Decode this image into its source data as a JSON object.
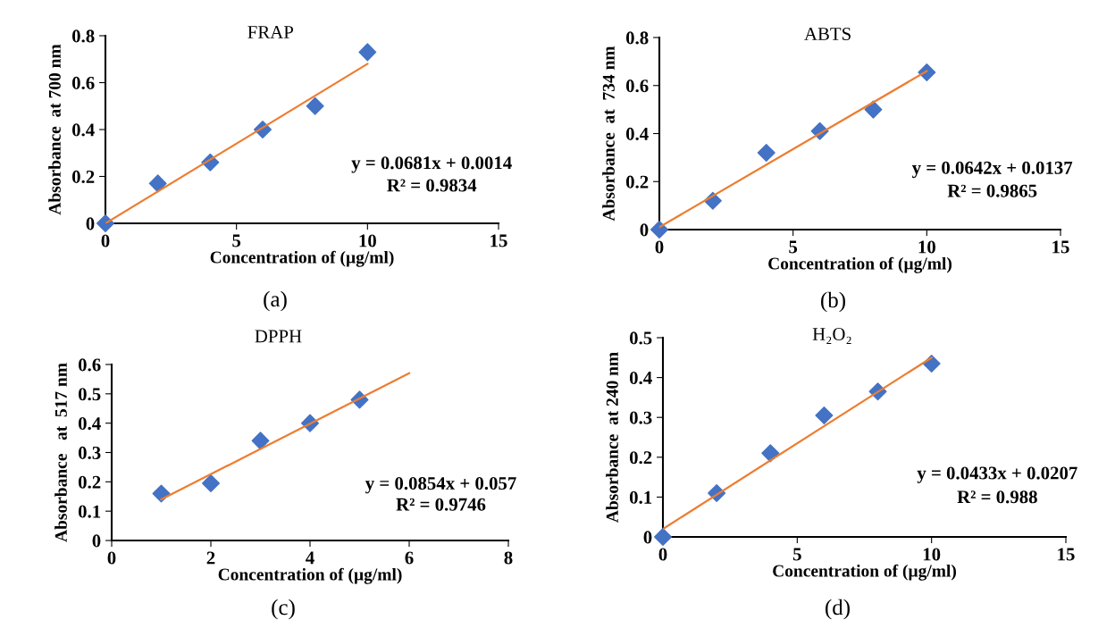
{
  "chart_data": [
    {
      "type": "scatter",
      "title": "FRAP",
      "xlabel": "Concentration of (µg/ml)",
      "ylabel": "Absorbance  at 700 nm",
      "xlim": [
        0,
        15
      ],
      "xticks": [
        0,
        5,
        10,
        15
      ],
      "ylim": [
        0,
        0.8
      ],
      "yticks": [
        0,
        0.2,
        0.4,
        0.6,
        0.8
      ],
      "grid": false,
      "legend": false,
      "annotations": [
        "y = 0.0681x + 0.0014",
        "R² = 0.9834",
        "(a)"
      ],
      "series": [
        {
          "marker": "diamond",
          "color": "#4472c4",
          "x": [
            0,
            2,
            4,
            6,
            8,
            10
          ],
          "values": [
            0,
            0.17,
            0.26,
            0.4,
            0.5,
            0.73
          ]
        },
        {
          "type": "line",
          "line_style": "solid",
          "color": "#ed7d31",
          "x": [
            0,
            10
          ],
          "values": [
            0.0,
            0.68
          ]
        }
      ]
    },
    {
      "type": "scatter",
      "title": "ABTS",
      "xlabel": "Concentration of (µg/ml)",
      "ylabel": "Absorbance  at  734 nm",
      "xlim": [
        0,
        15
      ],
      "xticks": [
        0,
        5,
        10,
        15
      ],
      "ylim": [
        0,
        0.8
      ],
      "yticks": [
        0,
        0.2,
        0.4,
        0.6,
        0.8
      ],
      "grid": false,
      "legend": false,
      "annotations": [
        "y = 0.0642x + 0.0137",
        "R² = 0.9865",
        "(b)"
      ],
      "series": [
        {
          "marker": "diamond",
          "color": "#4472c4",
          "x": [
            0,
            2,
            4,
            6,
            8,
            10
          ],
          "values": [
            0,
            0.12,
            0.32,
            0.41,
            0.5,
            0.655
          ]
        },
        {
          "type": "line",
          "line_style": "solid",
          "color": "#ed7d31",
          "x": [
            0,
            10
          ],
          "values": [
            0.01,
            0.66
          ]
        }
      ]
    },
    {
      "type": "scatter",
      "title": "DPPH",
      "xlabel": "Concentration of (µg/ml)",
      "ylabel": "Absorbance   at  517 nm",
      "xlim": [
        0,
        8
      ],
      "xticks": [
        0,
        2,
        4,
        6,
        8
      ],
      "ylim": [
        0,
        0.6
      ],
      "yticks": [
        0,
        0.1,
        0.2,
        0.3,
        0.4,
        0.5,
        0.6
      ],
      "grid": false,
      "legend": false,
      "annotations": [
        "y = 0.0854x + 0.057",
        "R² = 0.9746",
        "(c)"
      ],
      "series": [
        {
          "marker": "diamond",
          "color": "#4472c4",
          "x": [
            1,
            2,
            3,
            4,
            5
          ],
          "values": [
            0.16,
            0.195,
            0.34,
            0.4,
            0.48
          ]
        },
        {
          "type": "line",
          "line_style": "solid",
          "color": "#ed7d31",
          "x": [
            1,
            6
          ],
          "values": [
            0.14,
            0.57
          ]
        }
      ]
    },
    {
      "type": "scatter",
      "title": "H₂O₂",
      "xlabel": "Concentration of (µg/ml)",
      "ylabel": "Absorbance  at 240 nm",
      "xlim": [
        0,
        15
      ],
      "xticks": [
        0,
        5,
        10,
        15
      ],
      "ylim": [
        0,
        0.5
      ],
      "yticks": [
        0,
        0.1,
        0.2,
        0.3,
        0.4,
        0.5
      ],
      "grid": false,
      "legend": false,
      "annotations": [
        "y = 0.0433x + 0.0207",
        "R² = 0.988",
        "(d)"
      ],
      "series": [
        {
          "marker": "diamond",
          "color": "#4472c4",
          "x": [
            0,
            2,
            4,
            6,
            8,
            10
          ],
          "values": [
            0,
            0.11,
            0.21,
            0.305,
            0.365,
            0.435
          ]
        },
        {
          "type": "line",
          "line_style": "solid",
          "color": "#ed7d31",
          "x": [
            0,
            10
          ],
          "values": [
            0.02,
            0.45
          ]
        }
      ]
    }
  ]
}
